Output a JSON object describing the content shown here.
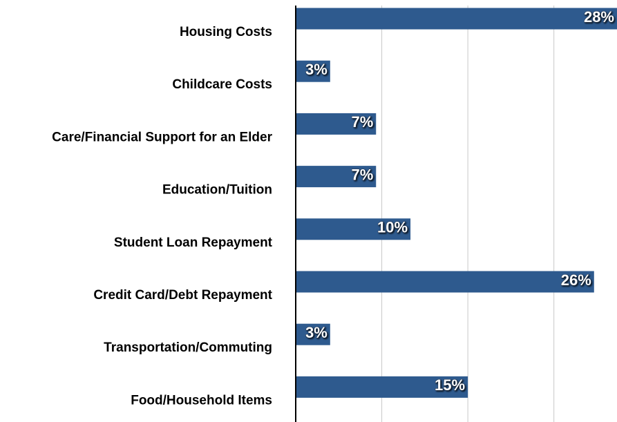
{
  "chart_data": {
    "type": "hbar",
    "categories": [
      "Housing Costs",
      "Childcare Costs",
      "Care/Financial Support for an Elder",
      "Education/Tuition",
      "Student Loan Repayment",
      "Credit Card/Debt Repayment",
      "Transportation/Commuting",
      "Food/Household Items"
    ],
    "values": [
      28,
      3,
      7,
      7,
      10,
      26,
      3,
      15
    ],
    "value_labels": [
      "28%",
      "3%",
      "7%",
      "7%",
      "10%",
      "26%",
      "3%",
      "15%"
    ],
    "color": "#2e5a8e",
    "xlim": [
      0,
      28
    ],
    "xticks": [
      0,
      7.5,
      15,
      22.5
    ],
    "grid": true
  }
}
